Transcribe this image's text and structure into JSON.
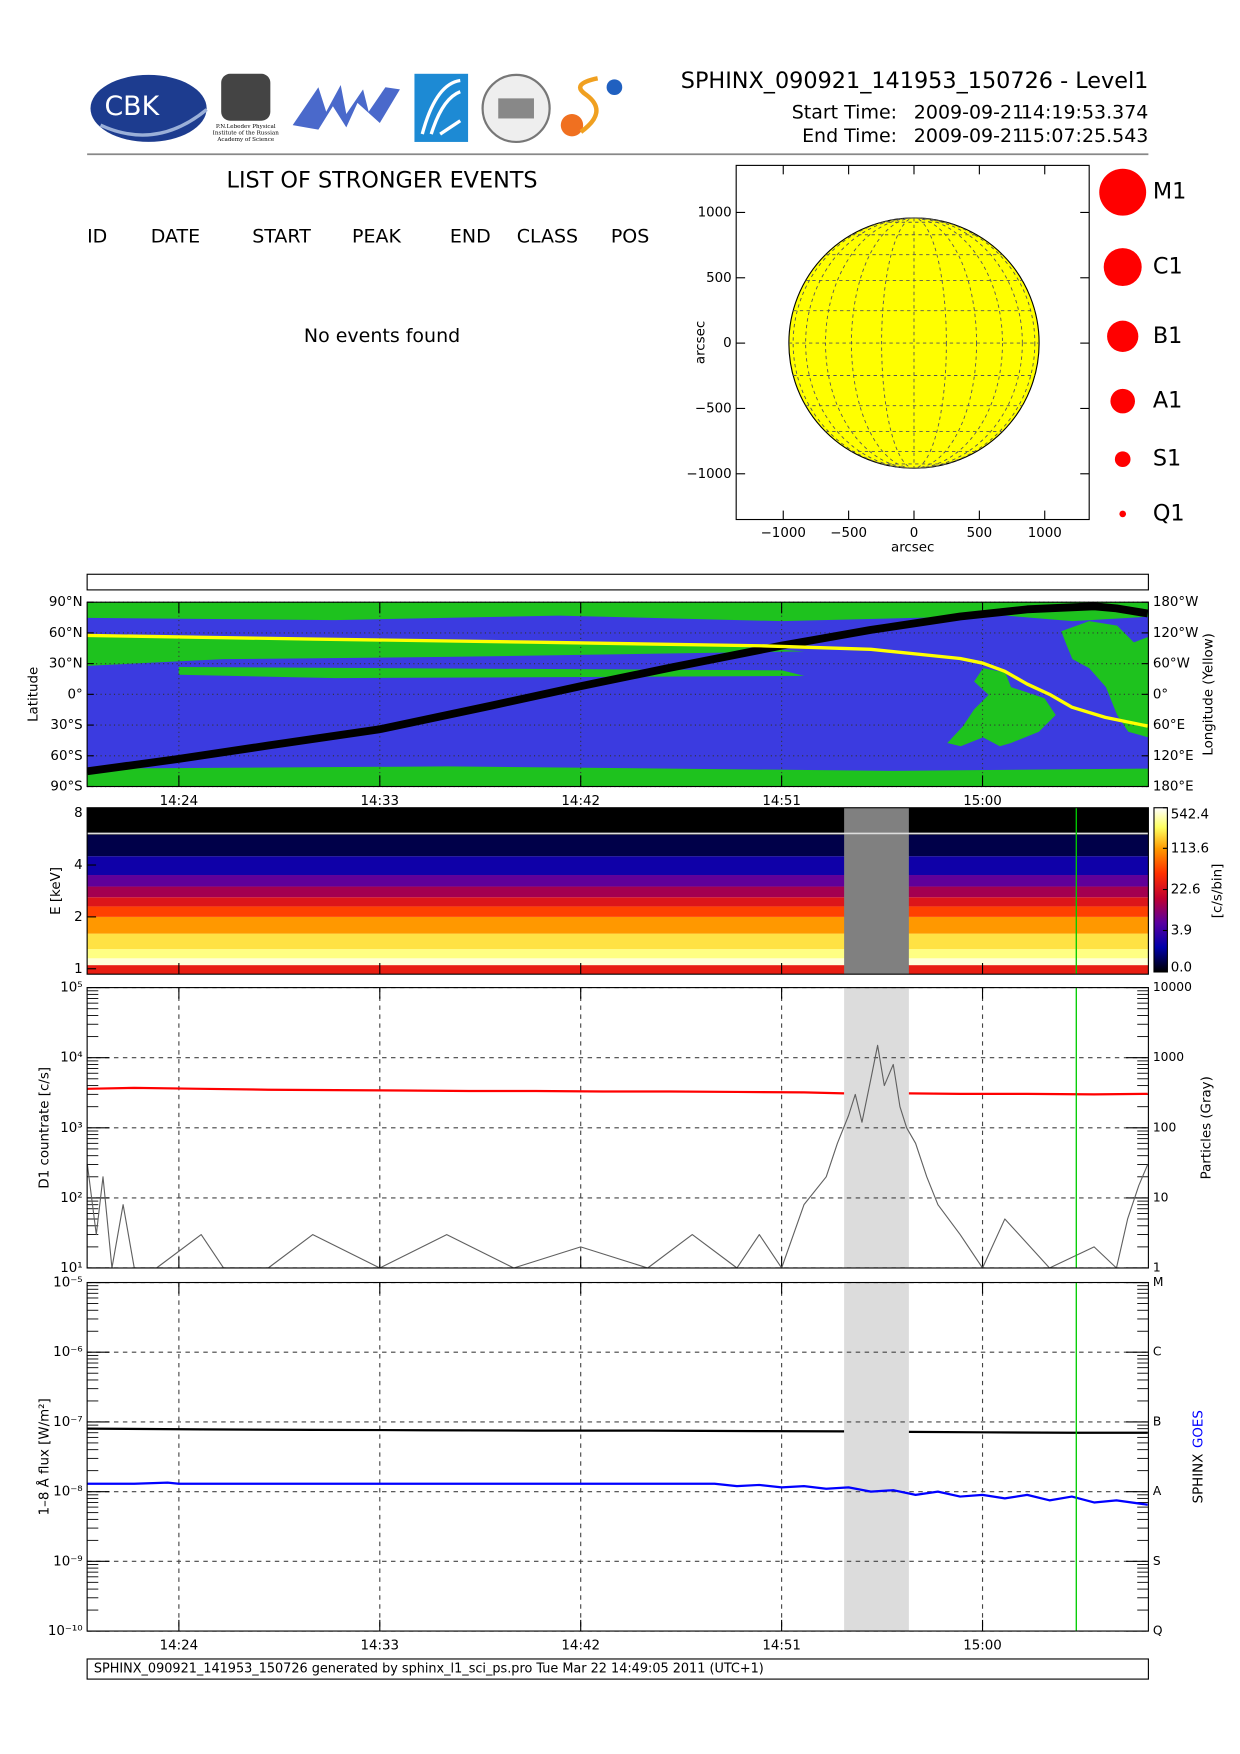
{
  "header": {
    "title": "SPHINX_090921_141953_150726 - Level1",
    "start": {
      "label": "Start Time:",
      "date": "2009-09-21",
      "time": "14:19:53.374"
    },
    "end": {
      "label": "End Time:",
      "date": "2009-09-21",
      "time": "15:07:25.543"
    },
    "logos": [
      "CBK",
      "P.N.Lebedev Physical",
      "Institute of the Russian",
      "Academy of Science"
    ]
  },
  "events": {
    "title": "LIST OF STRONGER EVENTS",
    "columns": [
      "ID",
      "DATE",
      "START",
      "PEAK",
      "END",
      "CLASS",
      "POS"
    ],
    "message": "No events found"
  },
  "time_axis": {
    "xlim": [
      859.89,
      907.43
    ],
    "xticks": [
      {
        "value": 864,
        "label": "14:24"
      },
      {
        "value": 873,
        "label": "14:33"
      },
      {
        "value": 882,
        "label": "14:42"
      },
      {
        "value": 891,
        "label": "14:51"
      },
      {
        "value": 900,
        "label": "15:00"
      }
    ],
    "gap": [
      893.8,
      896.7
    ],
    "marker": 904.2,
    "marker_color": "#00cc00"
  },
  "chart_data": [
    {
      "type": "disk",
      "xlabel": "arcsec",
      "ylabel": "arcsec",
      "xlim": [
        -1360,
        1340
      ],
      "ylim": [
        -1350,
        1360
      ],
      "xticks": [
        {
          "value": -1000,
          "label": "−1000"
        },
        {
          "value": -500,
          "label": "−500"
        },
        0,
        500,
        1000
      ],
      "yticks": [
        {
          "value": -1000,
          "label": "−1000"
        },
        {
          "value": -500,
          "label": "−500"
        },
        0,
        500,
        1000
      ],
      "radius": 957,
      "color": "#ffff00",
      "classes": [
        "M1",
        "C1",
        "B1",
        "A1",
        "S1",
        "Q1"
      ],
      "class_color": "#ff0000"
    },
    {
      "type": "map",
      "ylabel": "Latitude",
      "y2label": "Longitude (Yellow)",
      "ylim": [
        -90,
        90
      ],
      "yticks": [
        {
          "value": 90,
          "label": "90°N"
        },
        {
          "value": 60,
          "label": "60°N"
        },
        {
          "value": 30,
          "label": "30°N"
        },
        {
          "value": 0,
          "label": "0°"
        },
        {
          "value": -30,
          "label": "30°S"
        },
        {
          "value": -60,
          "label": "60°S"
        },
        {
          "value": -90,
          "label": "90°S"
        }
      ],
      "y2lim": [
        180,
        -180
      ],
      "y2ticks": [
        {
          "value": -180,
          "label": "180°W"
        },
        {
          "value": -120,
          "label": "120°W"
        },
        {
          "value": -60,
          "label": "60°W"
        },
        {
          "value": 0,
          "label": "0°"
        },
        {
          "value": 60,
          "label": "60°E"
        },
        {
          "value": 120,
          "label": "120°E"
        },
        {
          "value": 180,
          "label": "180°E"
        }
      ],
      "grid": true,
      "series": [
        {
          "color": "#000000",
          "x": [
            859.9,
            864,
            868,
            873,
            878,
            882,
            886,
            891,
            895,
            899,
            902,
            905,
            906,
            907.4
          ],
          "values": [
            -75,
            -63,
            -50,
            -34,
            -11,
            8,
            26,
            47.6,
            63,
            76,
            83,
            86,
            84,
            79
          ]
        },
        {
          "color": "#ffff00",
          "axis": "y2",
          "x": [
            859.9,
            870,
            880,
            890,
            895,
            899,
            900,
            901,
            902,
            903,
            904,
            905.5,
            907.4
          ],
          "values": [
            -115,
            -108,
            -102,
            -95,
            -88,
            -70,
            -61,
            -45,
            -20,
            0,
            25,
            45,
            62
          ]
        }
      ]
    },
    {
      "type": "spectrogram",
      "ylabel": "E [keV]",
      "ylim": [
        0.93,
        8.6
      ],
      "yticks": [
        1,
        2,
        4,
        8
      ],
      "log_y": true,
      "energy_bins": [
        0.93,
        1.05,
        1.15,
        1.3,
        1.6,
        2.0,
        2.3,
        2.6,
        3.0,
        3.5,
        4.5,
        6.0,
        8.6
      ],
      "counts": [
        30,
        450,
        300,
        200,
        110,
        50,
        25,
        12,
        6,
        2,
        0.5,
        0
      ],
      "upper_line": 6.1,
      "clabel": "[c/s/bin]",
      "clim": [
        0,
        542.4
      ],
      "cscale": "log1p",
      "cticks": [
        542.4,
        113.6,
        22.6,
        3.9,
        {
          "value": 0,
          "label": "0.0"
        }
      ],
      "gap_color": "#808080"
    },
    {
      "type": "line",
      "log_y": true,
      "ylabel": "D1 countrate [c/s]",
      "y2label": "Particles (Gray)",
      "ylim": [
        10,
        100000
      ],
      "yticks": [
        {
          "value": 10,
          "label": "10¹"
        },
        {
          "value": 100,
          "label": "10²"
        },
        {
          "value": 1000,
          "label": "10³"
        },
        {
          "value": 10000,
          "label": "10⁴"
        },
        {
          "value": 100000,
          "label": "10⁵"
        }
      ],
      "y2lim": [
        1,
        10000
      ],
      "y2ticks": [
        1,
        10,
        100,
        1000,
        10000
      ],
      "grid": true,
      "gap_color": "#dcdcdc",
      "series": [
        {
          "color": "#ff0000",
          "x": [
            859.9,
            862,
            865,
            868,
            871,
            874,
            877,
            880,
            883,
            886,
            889,
            892,
            893.8,
            895,
            896.7,
            899,
            902,
            905,
            907.4
          ],
          "values": [
            3600,
            3700,
            3600,
            3500,
            3450,
            3400,
            3350,
            3350,
            3300,
            3300,
            3250,
            3200,
            3100,
            null,
            3100,
            3050,
            3050,
            3000,
            3050
          ]
        },
        {
          "color": "#606060",
          "axis": "y2",
          "x": [
            859.9,
            860.3,
            860.6,
            861,
            861.5,
            862,
            863,
            865,
            866,
            868,
            870,
            873,
            876,
            879,
            882,
            885,
            887,
            889,
            890,
            891,
            892,
            893,
            893.5,
            894,
            894.3,
            894.6,
            895,
            895.3,
            895.6,
            896,
            896.3,
            896.6,
            897,
            897.5,
            898,
            899,
            900,
            901,
            903,
            905,
            906,
            906.5,
            907,
            907.4
          ],
          "values": [
            30,
            3,
            20,
            1,
            8,
            1,
            1,
            3,
            1,
            1,
            3,
            1,
            3,
            1,
            2,
            1,
            3,
            1,
            3,
            1,
            8,
            20,
            60,
            150,
            300,
            120,
            500,
            1500,
            400,
            800,
            200,
            100,
            60,
            20,
            8,
            3,
            1,
            5,
            1,
            2,
            1,
            5,
            15,
            30
          ]
        }
      ]
    },
    {
      "type": "line",
      "log_y": true,
      "ylabel": "1–8 Å flux [W/m²]",
      "ylim": [
        1e-10,
        1e-05
      ],
      "yticks": [
        {
          "value": 1e-10,
          "label": "10⁻¹⁰"
        },
        {
          "value": 1e-09,
          "label": "10⁻⁹"
        },
        {
          "value": 1e-08,
          "label": "10⁻⁸"
        },
        {
          "value": 1e-07,
          "label": "10⁻⁷"
        },
        {
          "value": 1e-06,
          "label": "10⁻⁶"
        },
        {
          "value": 1e-05,
          "label": "10⁻⁵"
        }
      ],
      "y2lim": [
        1e-10,
        1e-05
      ],
      "y2ticks": [
        {
          "value": 1e-10,
          "label": "Q"
        },
        {
          "value": 1e-09,
          "label": "S"
        },
        {
          "value": 1e-08,
          "label": "A"
        },
        {
          "value": 1e-07,
          "label": "B"
        },
        {
          "value": 1e-06,
          "label": "C"
        },
        {
          "value": 1e-05,
          "label": "M"
        }
      ],
      "grid": true,
      "gap_color": "#dcdcdc",
      "series": [
        {
          "name": "SPHINX",
          "color": "#000000",
          "x": [
            859.9,
            865,
            870,
            875,
            880,
            885,
            890,
            893.8,
            895,
            896.7,
            900,
            904,
            907.4
          ],
          "values": [
            8e-08,
            7.8e-08,
            7.7e-08,
            7.6e-08,
            7.5e-08,
            7.5e-08,
            7.4e-08,
            7.3e-08,
            null,
            7.2e-08,
            7.1e-08,
            7e-08,
            7e-08
          ]
        },
        {
          "name": "GOES",
          "color": "#0000ff",
          "x": [
            859.9,
            862,
            863.5,
            864,
            870,
            875,
            880,
            885,
            888,
            889,
            890,
            891,
            892,
            893,
            894,
            895,
            896,
            897,
            898,
            899,
            900,
            901,
            902,
            903,
            904,
            905,
            906,
            907.4
          ],
          "values": [
            1.3e-08,
            1.3e-08,
            1.35e-08,
            1.3e-08,
            1.3e-08,
            1.3e-08,
            1.3e-08,
            1.3e-08,
            1.3e-08,
            1.2e-08,
            1.25e-08,
            1.15e-08,
            1.2e-08,
            1.1e-08,
            1.15e-08,
            1e-08,
            1.05e-08,
            9e-09,
            1e-08,
            8.5e-09,
            9e-09,
            8e-09,
            9e-09,
            7.5e-09,
            8.5e-09,
            7e-09,
            7.5e-09,
            6.5e-09
          ]
        }
      ]
    }
  ],
  "footer": "SPHINX_090921_141953_150726 generated by sphinx_l1_sci_ps.pro Tue Mar 22 14:49:05 2011 (UTC+1)"
}
